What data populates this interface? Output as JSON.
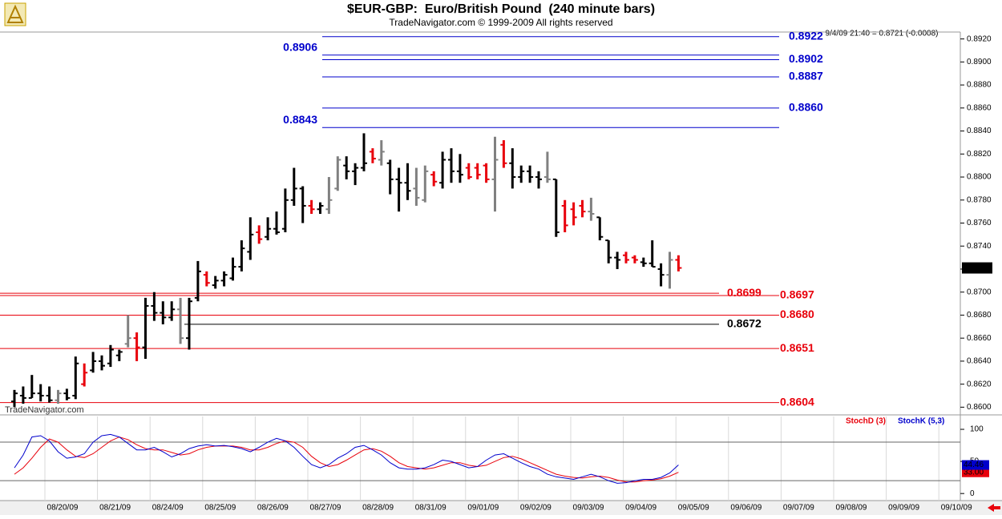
{
  "chart_data": [
    {
      "type": "ohlc",
      "title": "$EUR-GBP:  Euro/British Pound  (240 minute bars)",
      "subtitle": "TradeNavigator.com © 1999-2009 All rights reserved",
      "info": "9/4/09 21:40 = 0.8721 (-0.0008)",
      "watermark": "TradeNavigator.com",
      "ylim": [
        0.8594,
        0.8926
      ],
      "yticks": [
        {
          "value": 0.86,
          "label": "0.8600"
        },
        {
          "value": 0.862,
          "label": "0.8620"
        },
        {
          "value": 0.864,
          "label": "0.8640"
        },
        {
          "value": 0.866,
          "label": "0.8660"
        },
        {
          "value": 0.868,
          "label": "0.8680"
        },
        {
          "value": 0.87,
          "label": "0.8700"
        },
        {
          "value": 0.872,
          "label": "0.8720"
        },
        {
          "value": 0.874,
          "label": "0.8740"
        },
        {
          "value": 0.876,
          "label": "0.8760"
        },
        {
          "value": 0.878,
          "label": "0.8780"
        },
        {
          "value": 0.88,
          "label": "0.8800"
        },
        {
          "value": 0.882,
          "label": "0.8820"
        },
        {
          "value": 0.884,
          "label": "0.8840"
        },
        {
          "value": 0.886,
          "label": "0.8860"
        },
        {
          "value": 0.888,
          "label": "0.8880"
        },
        {
          "value": 0.89,
          "label": "0.8900"
        },
        {
          "value": 0.892,
          "label": "0.8920"
        }
      ],
      "last_value": 0.8721,
      "last_label": "0.8721",
      "date_labels": [
        "08/20/09",
        "08/21/09",
        "08/24/09",
        "08/25/09",
        "08/26/09",
        "08/27/09",
        "08/28/09",
        "08/31/09",
        "09/01/09",
        "09/02/09",
        "09/03/09",
        "09/04/09",
        "09/05/09",
        "09/06/09",
        "09/07/09",
        "09/08/09",
        "09/09/09",
        "09/10/09"
      ],
      "palette": {
        "k": "#000000",
        "g": "#808080",
        "r": "#e8000b"
      },
      "high": [
        0.8615,
        0.8618,
        0.8628,
        0.862,
        0.8618,
        0.8615,
        0.8616,
        0.8644,
        0.8638,
        0.8648,
        0.8645,
        0.8654,
        0.865,
        0.868,
        0.8665,
        0.8695,
        0.87,
        0.8692,
        0.8692,
        0.8695,
        0.8695,
        0.8727,
        0.8718,
        0.8714,
        0.8718,
        0.873,
        0.8745,
        0.8765,
        0.8758,
        0.8765,
        0.877,
        0.879,
        0.8808,
        0.8792,
        0.878,
        0.8778,
        0.88,
        0.8818,
        0.8818,
        0.8812,
        0.8838,
        0.8825,
        0.8832,
        0.8815,
        0.8808,
        0.8812,
        0.8808,
        0.881,
        0.8805,
        0.8822,
        0.8825,
        0.882,
        0.8812,
        0.8812,
        0.8812,
        0.8835,
        0.8832,
        0.8825,
        0.881,
        0.881,
        0.8805,
        0.8822,
        0.8798,
        0.878,
        0.8778,
        0.878,
        0.8782,
        0.8765,
        0.8745,
        0.8735,
        0.8735,
        0.8732,
        0.873,
        0.8745,
        0.8725,
        0.8735,
        0.8732
      ],
      "low": [
        0.86,
        0.8603,
        0.8608,
        0.8605,
        0.8604,
        0.8603,
        0.8606,
        0.8607,
        0.8618,
        0.863,
        0.8632,
        0.8635,
        0.864,
        0.8652,
        0.864,
        0.8642,
        0.8675,
        0.8672,
        0.8675,
        0.8655,
        0.865,
        0.8692,
        0.8705,
        0.8703,
        0.8705,
        0.871,
        0.8718,
        0.8728,
        0.8742,
        0.8745,
        0.875,
        0.8752,
        0.8775,
        0.876,
        0.8768,
        0.8768,
        0.8768,
        0.8788,
        0.8798,
        0.8793,
        0.8805,
        0.8812,
        0.881,
        0.8785,
        0.877,
        0.878,
        0.8775,
        0.8778,
        0.8792,
        0.879,
        0.8795,
        0.8795,
        0.8798,
        0.8798,
        0.8795,
        0.877,
        0.8808,
        0.879,
        0.8795,
        0.8795,
        0.879,
        0.8795,
        0.8748,
        0.8752,
        0.8758,
        0.8765,
        0.8762,
        0.8745,
        0.8725,
        0.872,
        0.8725,
        0.8725,
        0.8722,
        0.8722,
        0.8705,
        0.8703,
        0.8718
      ],
      "open": [
        0.8605,
        0.861,
        0.8608,
        0.8612,
        0.861,
        0.8606,
        0.8612,
        0.861,
        0.862,
        0.8632,
        0.864,
        0.8638,
        0.8645,
        0.8655,
        0.866,
        0.8652,
        0.8688,
        0.8682,
        0.8678,
        0.8685,
        0.866,
        0.8695,
        0.8715,
        0.8706,
        0.871,
        0.8712,
        0.8722,
        0.8735,
        0.8752,
        0.8748,
        0.8755,
        0.8755,
        0.878,
        0.879,
        0.8775,
        0.8772,
        0.8772,
        0.879,
        0.881,
        0.8805,
        0.8808,
        0.8822,
        0.8815,
        0.8812,
        0.8798,
        0.8795,
        0.879,
        0.878,
        0.8802,
        0.8795,
        0.8815,
        0.8805,
        0.8808,
        0.8808,
        0.881,
        0.8798,
        0.8828,
        0.8812,
        0.88,
        0.8805,
        0.88,
        0.88,
        0.8798,
        0.8775,
        0.8772,
        0.8775,
        0.877,
        0.8765,
        0.8745,
        0.873,
        0.8732,
        0.873,
        0.8726,
        0.8725,
        0.872,
        0.8715,
        0.8728
      ],
      "close": [
        0.8612,
        0.8608,
        0.8612,
        0.861,
        0.8606,
        0.8612,
        0.8608,
        0.8638,
        0.863,
        0.864,
        0.8636,
        0.865,
        0.8648,
        0.866,
        0.8652,
        0.8688,
        0.8682,
        0.8678,
        0.8685,
        0.866,
        0.8692,
        0.8718,
        0.8708,
        0.871,
        0.8715,
        0.8722,
        0.8738,
        0.875,
        0.8746,
        0.8755,
        0.8752,
        0.878,
        0.879,
        0.8775,
        0.8772,
        0.8775,
        0.878,
        0.8815,
        0.8805,
        0.8808,
        0.8812,
        0.8816,
        0.8822,
        0.8798,
        0.8795,
        0.8788,
        0.8782,
        0.8805,
        0.8796,
        0.8815,
        0.8805,
        0.8802,
        0.88,
        0.8802,
        0.8798,
        0.8815,
        0.8812,
        0.88,
        0.8805,
        0.88,
        0.8798,
        0.8798,
        0.8752,
        0.8758,
        0.8765,
        0.877,
        0.8768,
        0.8748,
        0.873,
        0.8728,
        0.8728,
        0.8728,
        0.8725,
        0.8722,
        0.8715,
        0.8728,
        0.8721
      ],
      "color_codes": [
        "k",
        "k",
        "k",
        "k",
        "k",
        "g",
        "k",
        "k",
        "r",
        "k",
        "k",
        "k",
        "k",
        "g",
        "r",
        "k",
        "k",
        "k",
        "k",
        "g",
        "k",
        "k",
        "r",
        "k",
        "k",
        "k",
        "k",
        "k",
        "r",
        "k",
        "k",
        "k",
        "k",
        "k",
        "r",
        "k",
        "g",
        "g",
        "k",
        "k",
        "k",
        "r",
        "g",
        "k",
        "k",
        "k",
        "g",
        "g",
        "r",
        "k",
        "k",
        "k",
        "r",
        "r",
        "r",
        "g",
        "r",
        "k",
        "k",
        "k",
        "k",
        "g",
        "k",
        "r",
        "r",
        "r",
        "g",
        "k",
        "k",
        "k",
        "r",
        "r",
        "k",
        "k",
        "k",
        "g",
        "r"
      ],
      "levels": [
        {
          "value": 0.8922,
          "label": "0.8922",
          "color": "#0000cc",
          "label_side": "right",
          "extent": "long"
        },
        {
          "value": 0.8906,
          "label": "0.8906",
          "color": "#0000cc",
          "label_side": "left",
          "extent": "long"
        },
        {
          "value": 0.8902,
          "label": "0.8902",
          "color": "#0000cc",
          "label_side": "right",
          "extent": "long"
        },
        {
          "value": 0.8887,
          "label": "0.8887",
          "color": "#0000cc",
          "label_side": "right",
          "extent": "long"
        },
        {
          "value": 0.886,
          "label": "0.8860",
          "color": "#0000cc",
          "label_side": "right",
          "extent": "long"
        },
        {
          "value": 0.8843,
          "label": "0.8843",
          "color": "#0000cc",
          "label_side": "left",
          "extent": "long"
        },
        {
          "value": 0.8699,
          "label": "0.8699",
          "color": "#e8000b",
          "label_side": "right",
          "extent": "short"
        },
        {
          "value": 0.8697,
          "label": "0.8697",
          "color": "#e8000b",
          "label_side": "right",
          "extent": "long"
        },
        {
          "value": 0.868,
          "label": "0.8680",
          "color": "#e8000b",
          "label_side": "right",
          "extent": "long"
        },
        {
          "value": 0.8672,
          "label": "0.8672",
          "color": "#000000",
          "label_side": "right",
          "extent": "short"
        },
        {
          "value": 0.8651,
          "label": "0.8651",
          "color": "#e8000b",
          "label_side": "right",
          "extent": "long"
        },
        {
          "value": 0.8604,
          "label": "0.8604",
          "color": "#e8000b",
          "label_side": "right",
          "extent": "long"
        }
      ]
    },
    {
      "type": "line",
      "ylim": [
        -11,
        120
      ],
      "yticks": [
        0,
        50,
        100
      ],
      "guides": [
        20,
        80
      ],
      "series": [
        {
          "name": "StochD (3)",
          "color": "#e8000b",
          "last_label": "33.00",
          "values": [
            30,
            40,
            55,
            72,
            85,
            80,
            68,
            58,
            56,
            62,
            72,
            82,
            88,
            84,
            76,
            70,
            68,
            68,
            64,
            60,
            62,
            68,
            72,
            74,
            74,
            74,
            72,
            68,
            68,
            72,
            78,
            82,
            80,
            72,
            58,
            48,
            42,
            45,
            52,
            60,
            68,
            70,
            66,
            58,
            48,
            42,
            40,
            38,
            40,
            44,
            48,
            48,
            44,
            42,
            44,
            50,
            56,
            58,
            54,
            48,
            42,
            36,
            30,
            27,
            25,
            24,
            26,
            27,
            25,
            21,
            18,
            18,
            20,
            21,
            23,
            27,
            33
          ]
        },
        {
          "name": "StochK (5,3)",
          "color": "#0000cc",
          "last_label": "44.46",
          "values": [
            40,
            60,
            88,
            90,
            82,
            65,
            55,
            57,
            62,
            80,
            90,
            92,
            88,
            78,
            68,
            68,
            72,
            65,
            57,
            62,
            70,
            74,
            76,
            74,
            75,
            73,
            70,
            65,
            72,
            80,
            86,
            82,
            72,
            58,
            45,
            40,
            45,
            55,
            62,
            72,
            75,
            68,
            60,
            48,
            40,
            38,
            38,
            40,
            45,
            52,
            50,
            45,
            40,
            42,
            52,
            60,
            62,
            55,
            48,
            42,
            38,
            30,
            26,
            24,
            22,
            26,
            30,
            26,
            20,
            16,
            17,
            20,
            22,
            22,
            25,
            32,
            44.46
          ]
        }
      ]
    }
  ]
}
